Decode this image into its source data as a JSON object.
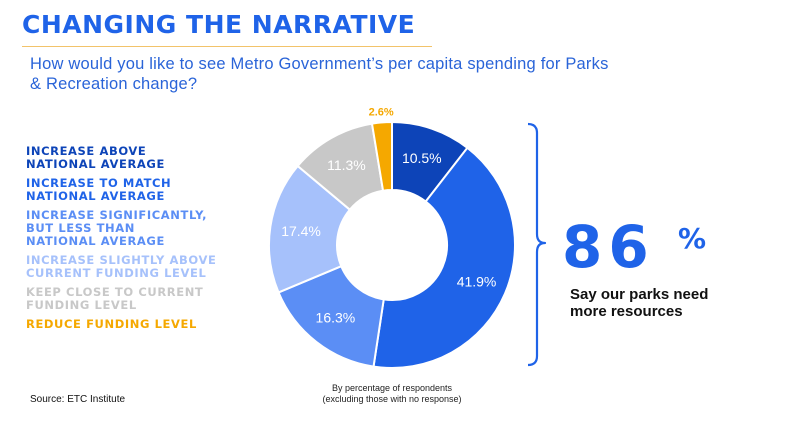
{
  "title": "CHANGING THE NARRATIVE",
  "subtitle": "How would you like to see Metro Government’s per capita spending for Parks & Recreation change?",
  "legend": [
    {
      "label": "INCREASE ABOVE\nNATIONAL AVERAGE",
      "color": "#0d44b8"
    },
    {
      "label": "INCREASE TO MATCH\nNATIONAL AVERAGE",
      "color": "#1f63e8"
    },
    {
      "label": "INCREASE SIGNIFICANTLY,\nBUT LESS THAN\nNATIONAL AVERAGE",
      "color": "#5b8ef5"
    },
    {
      "label": "INCREASE SLIGHTLY ABOVE\nCURRENT FUNDING LEVEL",
      "color": "#a6c1fb"
    },
    {
      "label": "KEEP CLOSE TO CURRENT\nFUNDING LEVEL",
      "color": "#c8c8c8"
    },
    {
      "label": "REDUCE FUNDING LEVEL",
      "color": "#f5a800"
    }
  ],
  "chart_data": {
    "type": "pie",
    "donut": true,
    "categories": [
      "INCREASE ABOVE NATIONAL AVERAGE",
      "INCREASE TO MATCH NATIONAL AVERAGE",
      "INCREASE SIGNIFICANTLY, BUT LESS THAN NATIONAL AVERAGE",
      "INCREASE SLIGHTLY ABOVE CURRENT FUNDING LEVEL",
      "KEEP CLOSE TO CURRENT FUNDING LEVEL",
      "REDUCE FUNDING LEVEL"
    ],
    "values": [
      10.5,
      41.9,
      16.3,
      17.4,
      11.3,
      2.6
    ],
    "labels": [
      "10.5%",
      "41.9%",
      "16.3%",
      "17.4%",
      "11.3%",
      "2.6%"
    ],
    "colors": [
      "#0d44b8",
      "#1f63e8",
      "#5b8ef5",
      "#a6c1fb",
      "#c8c8c8",
      "#f5a800"
    ],
    "label_colors": [
      "#ffffff",
      "#ffffff",
      "#ffffff",
      "#ffffff",
      "#ffffff",
      "#f5a800"
    ]
  },
  "highlight": {
    "value": "86",
    "unit": "%",
    "caption": "Say our parks need\nmore resources",
    "bracket_color": "#1f63e8"
  },
  "note": "By percentage of respondents\n(excluding those with no response)",
  "source": "Source: ETC Institute"
}
